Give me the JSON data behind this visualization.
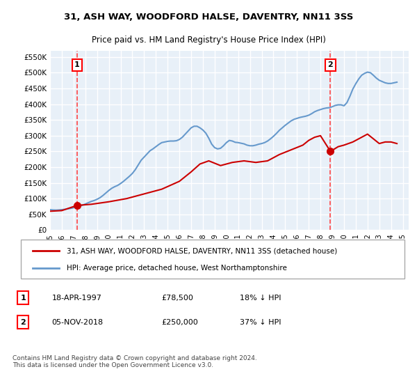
{
  "title": "31, ASH WAY, WOODFORD HALSE, DAVENTRY, NN11 3SS",
  "subtitle": "Price paid vs. HM Land Registry's House Price Index (HPI)",
  "ylabel_ticks": [
    "£0",
    "£50K",
    "£100K",
    "£150K",
    "£200K",
    "£250K",
    "£300K",
    "£350K",
    "£400K",
    "£450K",
    "£500K",
    "£550K"
  ],
  "ytick_values": [
    0,
    50000,
    100000,
    150000,
    200000,
    250000,
    300000,
    350000,
    400000,
    450000,
    500000,
    550000
  ],
  "ylim": [
    0,
    570000
  ],
  "xlim_start": 1995.0,
  "xlim_end": 2025.5,
  "sale1_date": 1997.3,
  "sale1_price": 78500,
  "sale1_label": "1",
  "sale2_date": 2018.85,
  "sale2_price": 250000,
  "sale2_label": "2",
  "legend_line1": "31, ASH WAY, WOODFORD HALSE, DAVENTRY, NN11 3SS (detached house)",
  "legend_line2": "HPI: Average price, detached house, West Northamptonshire",
  "table_row1": [
    "1",
    "18-APR-1997",
    "£78,500",
    "18% ↓ HPI"
  ],
  "table_row2": [
    "2",
    "05-NOV-2018",
    "£250,000",
    "37% ↓ HPI"
  ],
  "footnote": "Contains HM Land Registry data © Crown copyright and database right 2024.\nThis data is licensed under the Open Government Licence v3.0.",
  "price_line_color": "#cc0000",
  "hpi_line_color": "#6699cc",
  "bg_color": "#e8f0f8",
  "grid_color": "#ffffff",
  "sale_dot_color": "#cc0000",
  "dashed_line_color": "#ff4444",
  "hpi_data_x": [
    1995.0,
    1995.25,
    1995.5,
    1995.75,
    1996.0,
    1996.25,
    1996.5,
    1996.75,
    1997.0,
    1997.25,
    1997.5,
    1997.75,
    1998.0,
    1998.25,
    1998.5,
    1998.75,
    1999.0,
    1999.25,
    1999.5,
    1999.75,
    2000.0,
    2000.25,
    2000.5,
    2000.75,
    2001.0,
    2001.25,
    2001.5,
    2001.75,
    2002.0,
    2002.25,
    2002.5,
    2002.75,
    2003.0,
    2003.25,
    2003.5,
    2003.75,
    2004.0,
    2004.25,
    2004.5,
    2004.75,
    2005.0,
    2005.25,
    2005.5,
    2005.75,
    2006.0,
    2006.25,
    2006.5,
    2006.75,
    2007.0,
    2007.25,
    2007.5,
    2007.75,
    2008.0,
    2008.25,
    2008.5,
    2008.75,
    2009.0,
    2009.25,
    2009.5,
    2009.75,
    2010.0,
    2010.25,
    2010.5,
    2010.75,
    2011.0,
    2011.25,
    2011.5,
    2011.75,
    2012.0,
    2012.25,
    2012.5,
    2012.75,
    2013.0,
    2013.25,
    2013.5,
    2013.75,
    2014.0,
    2014.25,
    2014.5,
    2014.75,
    2015.0,
    2015.25,
    2015.5,
    2015.75,
    2016.0,
    2016.25,
    2016.5,
    2016.75,
    2017.0,
    2017.25,
    2017.5,
    2017.75,
    2018.0,
    2018.25,
    2018.5,
    2018.75,
    2019.0,
    2019.25,
    2019.5,
    2019.75,
    2020.0,
    2020.25,
    2020.5,
    2020.75,
    2021.0,
    2021.25,
    2021.5,
    2021.75,
    2022.0,
    2022.25,
    2022.5,
    2022.75,
    2023.0,
    2023.25,
    2023.5,
    2023.75,
    2024.0,
    2024.25,
    2024.5
  ],
  "hpi_data_y": [
    65000,
    64000,
    63500,
    64000,
    65000,
    66000,
    67500,
    69000,
    71000,
    73000,
    76000,
    79000,
    83000,
    87000,
    91000,
    94000,
    98000,
    103000,
    110000,
    118000,
    126000,
    133000,
    138000,
    142000,
    148000,
    155000,
    163000,
    171000,
    180000,
    192000,
    207000,
    222000,
    232000,
    242000,
    252000,
    258000,
    265000,
    272000,
    278000,
    280000,
    282000,
    283000,
    283000,
    284000,
    288000,
    295000,
    305000,
    315000,
    325000,
    330000,
    330000,
    325000,
    318000,
    308000,
    292000,
    273000,
    262000,
    258000,
    260000,
    268000,
    278000,
    285000,
    283000,
    279000,
    278000,
    276000,
    274000,
    270000,
    268000,
    268000,
    270000,
    273000,
    275000,
    278000,
    283000,
    290000,
    298000,
    307000,
    317000,
    325000,
    333000,
    340000,
    347000,
    352000,
    355000,
    358000,
    360000,
    362000,
    365000,
    370000,
    376000,
    380000,
    383000,
    386000,
    388000,
    389000,
    392000,
    396000,
    398000,
    398000,
    395000,
    405000,
    425000,
    448000,
    465000,
    480000,
    492000,
    498000,
    502000,
    500000,
    492000,
    483000,
    476000,
    472000,
    468000,
    466000,
    466000,
    468000,
    470000
  ],
  "price_data_x": [
    1995.0,
    1996.0,
    1997.3,
    1998.5,
    2000.0,
    2001.5,
    2003.0,
    2004.5,
    2006.0,
    2007.0,
    2007.75,
    2008.5,
    2009.5,
    2010.5,
    2011.5,
    2012.5,
    2013.5,
    2014.5,
    2015.5,
    2016.5,
    2017.0,
    2017.5,
    2018.0,
    2018.85,
    2019.5,
    2020.0,
    2020.75,
    2021.5,
    2022.0,
    2022.5,
    2023.0,
    2023.5,
    2024.0,
    2024.5
  ],
  "price_data_y": [
    60000,
    62000,
    78500,
    82000,
    90000,
    100000,
    115000,
    130000,
    155000,
    185000,
    210000,
    220000,
    205000,
    215000,
    220000,
    215000,
    220000,
    240000,
    255000,
    270000,
    285000,
    295000,
    300000,
    250000,
    265000,
    270000,
    280000,
    295000,
    305000,
    290000,
    275000,
    280000,
    280000,
    275000
  ]
}
